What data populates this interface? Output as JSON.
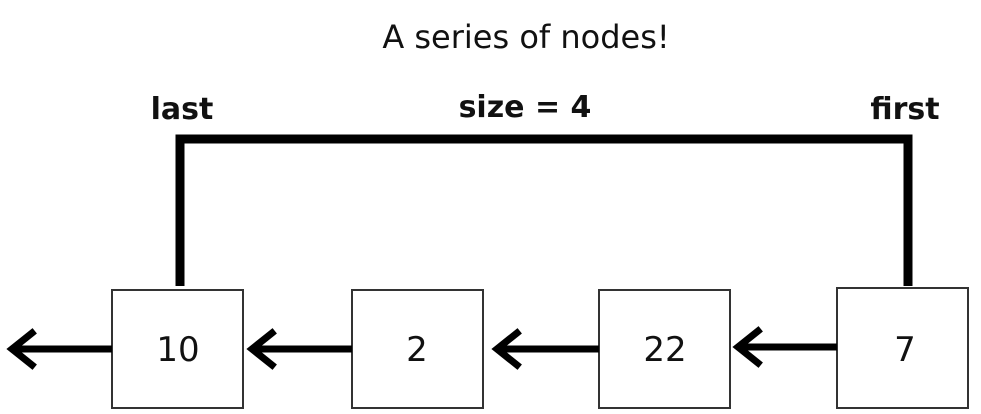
{
  "title": "A series of nodes!",
  "labels": {
    "last": "last",
    "size": "size = 4",
    "first": "first"
  },
  "nodes": [
    {
      "value": "10"
    },
    {
      "value": "2"
    },
    {
      "value": "22"
    },
    {
      "value": "7"
    }
  ],
  "colors": {
    "stroke": "#000000",
    "box_border": "#333333",
    "background": "#ffffff"
  }
}
